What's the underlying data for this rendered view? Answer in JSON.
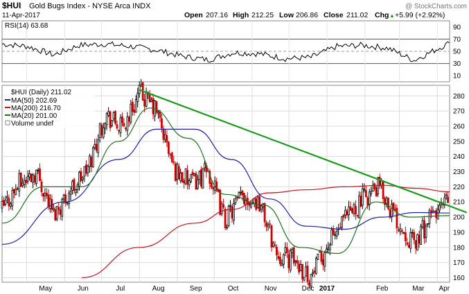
{
  "header": {
    "symbol": "$HUI",
    "name": "Gold Bugs Index - NYSE Arca INDX",
    "date": "11-Apr-2017",
    "watermark": "@ StockCharts.com",
    "open_label": "Open",
    "open": "207.16",
    "high_label": "High",
    "high": "212.25",
    "low_label": "Low",
    "low": "206.86",
    "close_label": "Close",
    "close": "211.02",
    "chg_label": "Chg",
    "chg": "+5.99 (+2.92%)",
    "chg_arrow": "▲"
  },
  "rsi_panel": {
    "label": "RSI(14) 63.68",
    "ticks": [
      "90",
      "70",
      "50",
      "30",
      "10"
    ]
  },
  "price_panel": {
    "legend": [
      "$HUI (Daily) 211.02",
      "MA(50) 202.69",
      "MA(200) 216.70",
      "MA(20) 201.00",
      "Volume undef"
    ],
    "ticks": [
      "280",
      "270",
      "260",
      "250",
      "240",
      "230",
      "220",
      "210",
      "200",
      "190",
      "180",
      "170",
      "160"
    ]
  },
  "x_labels": [
    "May",
    "Jun",
    "Jul",
    "Aug",
    "Sep",
    "Oct",
    "Nov",
    "Dec",
    "2017",
    "Feb",
    "Mar",
    "Apr"
  ],
  "colors": {
    "price": "#000000",
    "ma50": "#2020a0",
    "ma200": "#cc1020",
    "ma20": "#207020",
    "trendline": "#1a9a1a",
    "grid": "#dcdcdc",
    "up": "#000000",
    "down": "#cc0000"
  },
  "chart_data": [
    {
      "type": "line",
      "title": "RSI(14) 63.68",
      "x_range": [
        "2016-04-11",
        "2017-04-11"
      ],
      "ylim": [
        0,
        100
      ],
      "reference_lines": [
        70,
        50,
        30
      ],
      "series": [
        {
          "name": "RSI(14)",
          "x": [
            "2016-04-11",
            "2016-05-02",
            "2016-05-23",
            "2016-06-13",
            "2016-07-04",
            "2016-07-25",
            "2016-08-15",
            "2016-09-05",
            "2016-09-26",
            "2016-10-17",
            "2016-11-07",
            "2016-11-28",
            "2016-12-19",
            "2017-01-09",
            "2017-01-30",
            "2017-02-20",
            "2017-03-13",
            "2017-04-03",
            "2017-04-11"
          ],
          "values": [
            62,
            58,
            44,
            60,
            62,
            58,
            52,
            42,
            36,
            48,
            46,
            38,
            40,
            58,
            60,
            55,
            35,
            56,
            63.68
          ]
        }
      ]
    },
    {
      "type": "line",
      "title": "$HUI (Daily) 211.02",
      "x_range": [
        "2016-04-11",
        "2017-04-11"
      ],
      "ylim": [
        157,
        287
      ],
      "series": [
        {
          "name": "$HUI (Daily)",
          "x": [
            "2016-04-11",
            "2016-04-25",
            "2016-05-09",
            "2016-05-23",
            "2016-06-06",
            "2016-06-20",
            "2016-07-04",
            "2016-07-18",
            "2016-08-01",
            "2016-08-15",
            "2016-08-29",
            "2016-09-12",
            "2016-09-26",
            "2016-10-10",
            "2016-10-24",
            "2016-11-07",
            "2016-11-21",
            "2016-12-05",
            "2016-12-19",
            "2017-01-02",
            "2017-01-16",
            "2017-01-30",
            "2017-02-13",
            "2017-02-27",
            "2017-03-13",
            "2017-03-27",
            "2017-04-11"
          ],
          "values": [
            205,
            222,
            230,
            202,
            218,
            232,
            268,
            258,
            282,
            270,
            232,
            222,
            230,
            198,
            214,
            210,
            176,
            172,
            160,
            182,
            198,
            212,
            220,
            198,
            182,
            200,
            211
          ]
        },
        {
          "name": "MA(50) 202.69",
          "x": [
            "2016-04-11",
            "2016-06-01",
            "2016-07-15",
            "2016-08-15",
            "2016-09-15",
            "2016-10-15",
            "2016-11-15",
            "2016-12-15",
            "2017-01-15",
            "2017-02-15",
            "2017-03-15",
            "2017-04-11"
          ],
          "values": [
            182,
            210,
            238,
            258,
            258,
            238,
            212,
            194,
            192,
            200,
            203,
            202.69
          ]
        },
        {
          "name": "MA(200) 216.70",
          "x": [
            "2016-06-15",
            "2016-08-01",
            "2016-09-15",
            "2016-10-15",
            "2016-11-15",
            "2016-12-15",
            "2017-01-15",
            "2017-02-15",
            "2017-03-15",
            "2017-04-11"
          ],
          "values": [
            160,
            180,
            196,
            205,
            216,
            218,
            220,
            221,
            219,
            216.7
          ]
        },
        {
          "name": "MA(20) 201.00",
          "x": [
            "2016-04-11",
            "2016-05-15",
            "2016-06-15",
            "2016-07-15",
            "2016-08-10",
            "2016-09-10",
            "2016-10-10",
            "2016-11-10",
            "2016-12-10",
            "2017-01-10",
            "2017-02-10",
            "2017-03-10",
            "2017-04-11"
          ],
          "values": [
            196,
            220,
            220,
            250,
            272,
            252,
            215,
            208,
            180,
            176,
            210,
            200,
            201.0
          ]
        },
        {
          "name": "Trendline",
          "x": [
            "2016-08-01",
            "2017-04-25"
          ],
          "values": [
            284,
            203
          ]
        }
      ]
    }
  ]
}
